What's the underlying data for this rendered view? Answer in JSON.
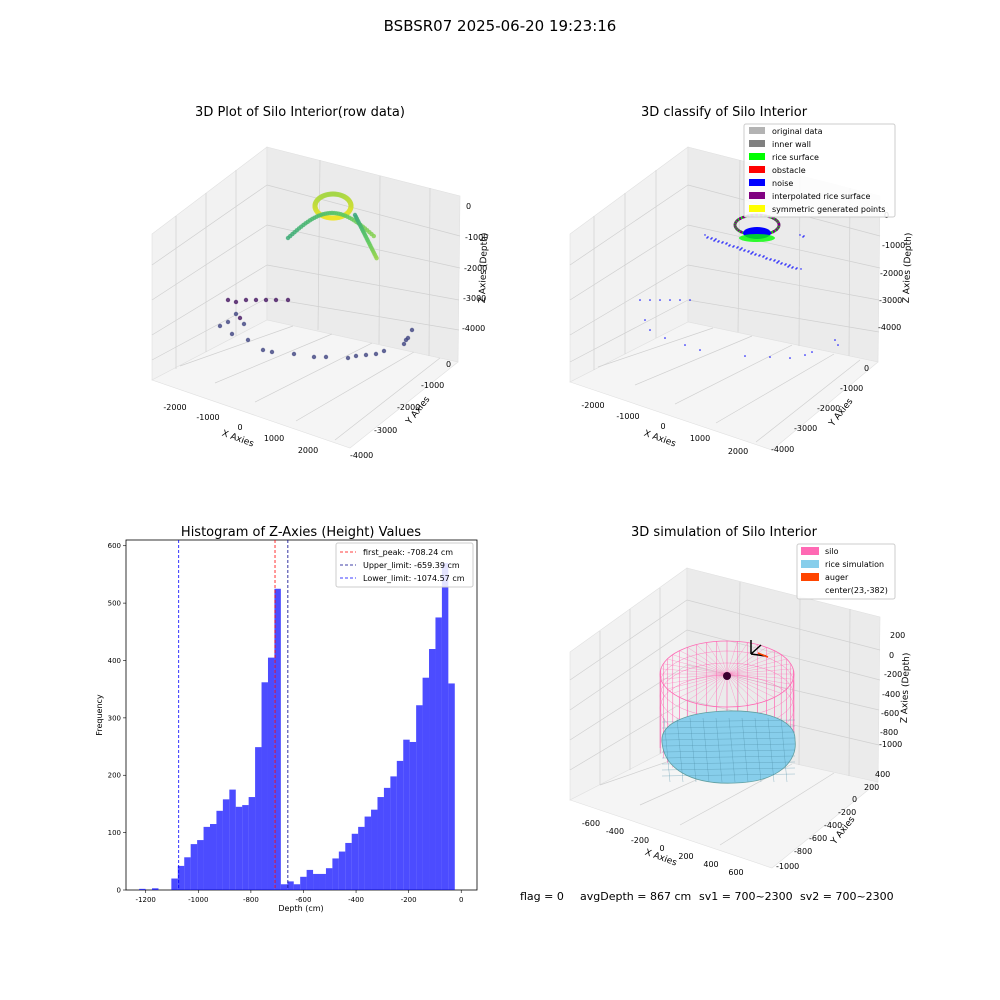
{
  "suptitle": "BSBSR07 2025-06-20 19:23:16",
  "plot1": {
    "title": "3D Plot of Silo Interior(row data)",
    "xlabel": "X Axies",
    "ylabel": "Y Axies",
    "zlabel": "Z Axies (Depth)",
    "xticks": [
      "-2000",
      "-1000",
      "0",
      "1000",
      "2000"
    ],
    "yticks": [
      "0",
      "-1000",
      "-2000",
      "-3000",
      "-4000"
    ],
    "zticks": [
      "0",
      "-1000",
      "-2000",
      "-3000",
      "-4000"
    ]
  },
  "plot2": {
    "title": "3D classify of Silo Interior",
    "xlabel": "X Axies",
    "ylabel": "Y Axies",
    "zlabel": "Z Axies (Depth)",
    "xticks": [
      "-2000",
      "-1000",
      "0",
      "1000",
      "2000"
    ],
    "yticks": [
      "0",
      "-1000",
      "-2000",
      "-3000",
      "-4000"
    ],
    "zticks": [
      "0",
      "-1000",
      "-2000",
      "-3000",
      "-4000"
    ],
    "legend": [
      {
        "label": "original data",
        "color": "#b3b3b3"
      },
      {
        "label": "inner wall",
        "color": "#808080"
      },
      {
        "label": "rice surface",
        "color": "#00ff00"
      },
      {
        "label": "obstacle",
        "color": "#ff0000"
      },
      {
        "label": "noise",
        "color": "#0000ff"
      },
      {
        "label": "interpolated rice surface",
        "color": "#800080"
      },
      {
        "label": "symmetric generated points",
        "color": "#ffff00"
      }
    ]
  },
  "plot3": {
    "title": "Histogram of Z-Axies (Height) Values",
    "xlabel": "Depth (cm)",
    "ylabel": "Frequency",
    "legend": [
      {
        "label": "first_peak: -708.24 cm",
        "color": "#ff0000"
      },
      {
        "label": "Upper_limit: -659.39 cm",
        "color": "#00008b"
      },
      {
        "label": "Lower_limit: -1074.57 cm",
        "color": "#0000ff"
      }
    ]
  },
  "plot4": {
    "title": "3D simulation of Silo Interior",
    "xlabel": "X Axies",
    "ylabel": "Y Axies",
    "zlabel": "Z Axies (Depth)",
    "xticks": [
      "-600",
      "-400",
      "-200",
      "0",
      "200",
      "400",
      "600"
    ],
    "yticks": [
      "400",
      "200",
      "0",
      "-200",
      "-400",
      "-600",
      "-800",
      "-1000"
    ],
    "zticks": [
      "200",
      "0",
      "-200",
      "-400",
      "-600",
      "-800",
      "-1000"
    ],
    "legend": [
      {
        "label": "silo",
        "color": "#ff69b4"
      },
      {
        "label": "rice simulation",
        "color": "#87ceeb"
      },
      {
        "label": "auger",
        "color": "#ff4500"
      },
      {
        "label": "center(23,-382)",
        "color": ""
      }
    ]
  },
  "status": {
    "flag": "flag = 0",
    "avg_depth": "avgDepth = 867 cm",
    "sv1": "sv1 = 700~2300",
    "sv2": "sv2 = 700~2300"
  },
  "chart_data": [
    {
      "type": "scatter",
      "title": "3D Plot of Silo Interior(row data)",
      "xlabel": "X Axies",
      "ylabel": "Y Axies",
      "zlabel": "Z Axies (Depth)",
      "xlim": [
        -2500,
        2800
      ],
      "ylim": [
        -4000,
        500
      ],
      "zlim": [
        -4500,
        0
      ],
      "colormap": "viridis by depth"
    },
    {
      "type": "scatter",
      "title": "3D classify of Silo Interior",
      "xlabel": "X Axies",
      "ylabel": "Y Axies",
      "zlabel": "Z Axies (Depth)",
      "xlim": [
        -2500,
        2800
      ],
      "ylim": [
        -4000,
        500
      ],
      "zlim": [
        -4500,
        0
      ],
      "series": [
        {
          "name": "original data"
        },
        {
          "name": "inner wall"
        },
        {
          "name": "rice surface"
        },
        {
          "name": "obstacle"
        },
        {
          "name": "noise"
        },
        {
          "name": "interpolated rice surface"
        },
        {
          "name": "symmetric generated points"
        }
      ]
    },
    {
      "type": "bar",
      "title": "Histogram of Z-Axies (Height) Values",
      "xlabel": "Depth (cm)",
      "ylabel": "Frequency",
      "xlim": [
        -1275,
        60
      ],
      "ylim": [
        0,
        610
      ],
      "xticks": [
        -1200,
        -1000,
        -800,
        -600,
        -400,
        -200,
        0
      ],
      "yticks": [
        0,
        100,
        200,
        300,
        400,
        500,
        600
      ],
      "bin_start": -1225,
      "bin_width": 24.5,
      "values": [
        2,
        0,
        3,
        0,
        0,
        20,
        42,
        57,
        80,
        87,
        110,
        115,
        138,
        158,
        175,
        145,
        148,
        162,
        249,
        362,
        405,
        525,
        10,
        15,
        10,
        23,
        35,
        28,
        28,
        38,
        55,
        67,
        82,
        98,
        110,
        128,
        140,
        162,
        178,
        198,
        225,
        262,
        258,
        322,
        370,
        420,
        475,
        570,
        360
      ],
      "vlines": [
        {
          "name": "first_peak: -708.24 cm",
          "x": -708.24,
          "color": "#ff0000"
        },
        {
          "name": "Upper_limit: -659.39 cm",
          "x": -659.39,
          "color": "#00008b"
        },
        {
          "name": "Lower_limit: -1074.57 cm",
          "x": -1074.57,
          "color": "#0000ff"
        }
      ]
    },
    {
      "type": "scatter",
      "title": "3D simulation of Silo Interior",
      "xlabel": "X Axies",
      "ylabel": "Y Axies",
      "zlabel": "Z Axies (Depth)",
      "xlim": [
        -700,
        700
      ],
      "ylim": [
        -1100,
        450
      ],
      "zlim": [
        -1100,
        300
      ],
      "series": [
        {
          "name": "silo"
        },
        {
          "name": "rice simulation"
        },
        {
          "name": "auger"
        },
        {
          "name": "center(23,-382)"
        }
      ]
    }
  ]
}
